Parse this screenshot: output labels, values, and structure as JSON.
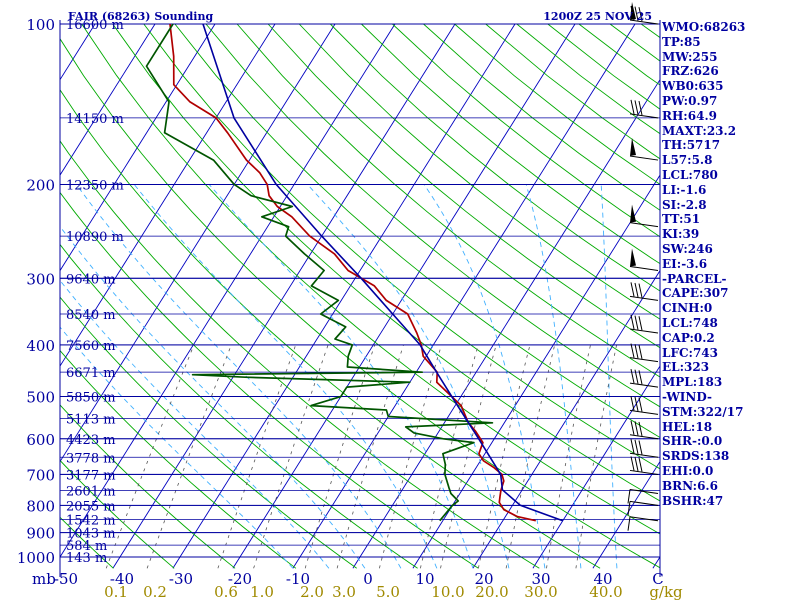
{
  "header": {
    "title": "FAIR (68263) Sounding",
    "time": "1200Z 25 NOV 25"
  },
  "indices": [
    "WMO:68263",
    "TP:85",
    "MW:255",
    "FRZ:626",
    "WB0:635",
    "PW:0.97",
    "RH:64.9",
    "MAXT:23.2",
    "TH:5717",
    "L57:5.8",
    "LCL:780",
    "LI:-1.6",
    "SI:-2.8",
    "TT:51",
    "KI:39",
    "SW:246",
    "EI:-3.6",
    "-PARCEL-",
    "CAPE:307",
    "CINH:0",
    "LCL:748",
    "CAP:0.2",
    "LFC:743",
    "EL:323",
    "MPL:183",
    "-WIND-",
    "STM:322/17",
    "HEL:18",
    "SHR-:0.0",
    "SRDS:138",
    "EHI:0.0",
    "BRN:6.6",
    "BSHR:47"
  ],
  "colors": {
    "isobar": "#0000a0",
    "isotherm": "#0000c0",
    "dry_adiabat": "#00aa00",
    "moist_adiabat": "#40b0ff",
    "mixing_ratio": "#555555",
    "temperature": "#b00000",
    "dewpoint": "#005500",
    "parcel": "#0000a0",
    "mixing_ratio_label": "#a08a00",
    "text": "#0000a0"
  },
  "chart_data": {
    "type": "line",
    "title": "FAIR (68263) Sounding",
    "pressure_unit": "mb",
    "pressure_ticks": [
      100,
      200,
      300,
      400,
      500,
      600,
      700,
      800,
      900,
      1000
    ],
    "temperature_ticks": [
      -50,
      -40,
      -30,
      -20,
      -10,
      0,
      10,
      20,
      30,
      40
    ],
    "temperature_tick_labels": [
      "-50",
      "-40",
      "-30",
      "-20",
      "-10",
      "0",
      "10",
      "20",
      "30",
      "40",
      "C"
    ],
    "mixing_ratio_labels": [
      "0.1",
      "0.2",
      "0.6",
      "1.0",
      "2.0",
      "3.0",
      "5.0",
      "10.0",
      "20.0",
      "30.0",
      "40.0",
      "g/kg"
    ],
    "height_labels": [
      {
        "p": 100,
        "label": "16600 m"
      },
      {
        "p": 150,
        "label": "14150 m"
      },
      {
        "p": 200,
        "label": "12350 m"
      },
      {
        "p": 250,
        "label": "10890 m"
      },
      {
        "p": 300,
        "label": "9640 m"
      },
      {
        "p": 350,
        "label": "8540 m"
      },
      {
        "p": 400,
        "label": "7560 m"
      },
      {
        "p": 450,
        "label": "6671 m"
      },
      {
        "p": 500,
        "label": "5850 m"
      },
      {
        "p": 550,
        "label": "5113 m"
      },
      {
        "p": 600,
        "label": "4423 m"
      },
      {
        "p": 650,
        "label": "3778 m"
      },
      {
        "p": 700,
        "label": "3177 m"
      },
      {
        "p": 750,
        "label": "2601 m"
      },
      {
        "p": 800,
        "label": "2055 m"
      },
      {
        "p": 850,
        "label": "1542 m"
      },
      {
        "p": 900,
        "label": "1043 m"
      },
      {
        "p": 950,
        "label": "584 m"
      },
      {
        "p": 1000,
        "label": "143 m"
      }
    ],
    "series": [
      {
        "key": "temperature",
        "p": [
          855,
          840,
          815,
          790,
          770,
          750,
          720,
          700,
          680,
          660,
          640,
          610,
          580,
          560,
          520,
          500,
          470,
          450,
          420,
          400,
          380,
          350,
          330,
          310,
          290,
          270,
          250,
          230,
          220,
          210,
          200,
          190,
          180,
          160,
          150,
          140,
          130,
          115,
          100
        ],
        "t": [
          25.5,
          22.0,
          19.0,
          17.5,
          17.0,
          16.5,
          16.0,
          15.0,
          13.0,
          10.5,
          9.0,
          8.5,
          6.0,
          4.0,
          1.0,
          -1.5,
          -5.5,
          -6.5,
          -10.5,
          -12.0,
          -14.0,
          -17.5,
          -22.5,
          -26.0,
          -32.0,
          -36.0,
          -42.0,
          -47.0,
          -50.5,
          -53.0,
          -54.5,
          -57.0,
          -60.5,
          -66.5,
          -70.0,
          -76.0,
          -80.5,
          -83.5,
          -87.5
        ]
      },
      {
        "key": "dewpoint",
        "p": [
          855,
          800,
          785,
          760,
          740,
          700,
          670,
          640,
          610,
          600,
          585,
          570,
          560,
          545,
          530,
          520,
          500,
          480,
          470,
          460,
          455,
          450,
          440,
          420,
          400,
          390,
          370,
          350,
          330,
          310,
          290,
          270,
          250,
          240,
          230,
          220,
          210,
          200,
          180,
          160,
          140,
          120,
          100
        ],
        "t": [
          9.5,
          10.0,
          10.5,
          8.5,
          7.5,
          5.5,
          4.5,
          3.0,
          7.0,
          1.5,
          -4.0,
          -6.0,
          8.0,
          -10.0,
          -11.0,
          -24.0,
          -20.0,
          -20.0,
          -10.0,
          -38.0,
          -47.0,
          -9.0,
          -22.0,
          -23.0,
          -23.5,
          -27.0,
          -26.5,
          -32.0,
          -30.5,
          -36.5,
          -36.0,
          -41.0,
          -46.0,
          -46.5,
          -52.0,
          -48.0,
          -56.0,
          -60.0,
          -66.0,
          -77.0,
          -79.5,
          -87.0,
          -87.0
        ]
      },
      {
        "key": "parcel",
        "p": [
          855,
          800,
          748,
          700,
          600,
          500,
          450,
          400,
          350,
          300,
          250,
          200,
          150,
          100
        ],
        "t": [
          30.0,
          21.3,
          16.7,
          14.8,
          7.4,
          -1.5,
          -6.6,
          -12.2,
          -20.0,
          -29.0,
          -40.0,
          -53.0,
          -67.0,
          -82.0
        ]
      }
    ],
    "wind_barbs": [
      {
        "p": 100,
        "type": "pennant-feathers"
      },
      {
        "p": 150,
        "type": "feathers"
      },
      {
        "p": 180,
        "type": "pennant"
      },
      {
        "p": 240,
        "type": "pennant"
      },
      {
        "p": 290,
        "type": "pennant"
      },
      {
        "p": 330,
        "type": "feathers"
      },
      {
        "p": 380,
        "type": "feathers"
      },
      {
        "p": 430,
        "type": "feathers"
      },
      {
        "p": 480,
        "type": "feathers"
      },
      {
        "p": 540,
        "type": "feathers"
      },
      {
        "p": 600,
        "type": "feathers"
      },
      {
        "p": 650,
        "type": "feathers"
      },
      {
        "p": 700,
        "type": "feathers"
      },
      {
        "p": 760,
        "type": "flag"
      },
      {
        "p": 800,
        "type": "flag"
      },
      {
        "p": 855,
        "type": "flag"
      }
    ],
    "temperature_range": [
      -50,
      50
    ],
    "pressure_range": [
      1050,
      100
    ],
    "grid": true
  }
}
